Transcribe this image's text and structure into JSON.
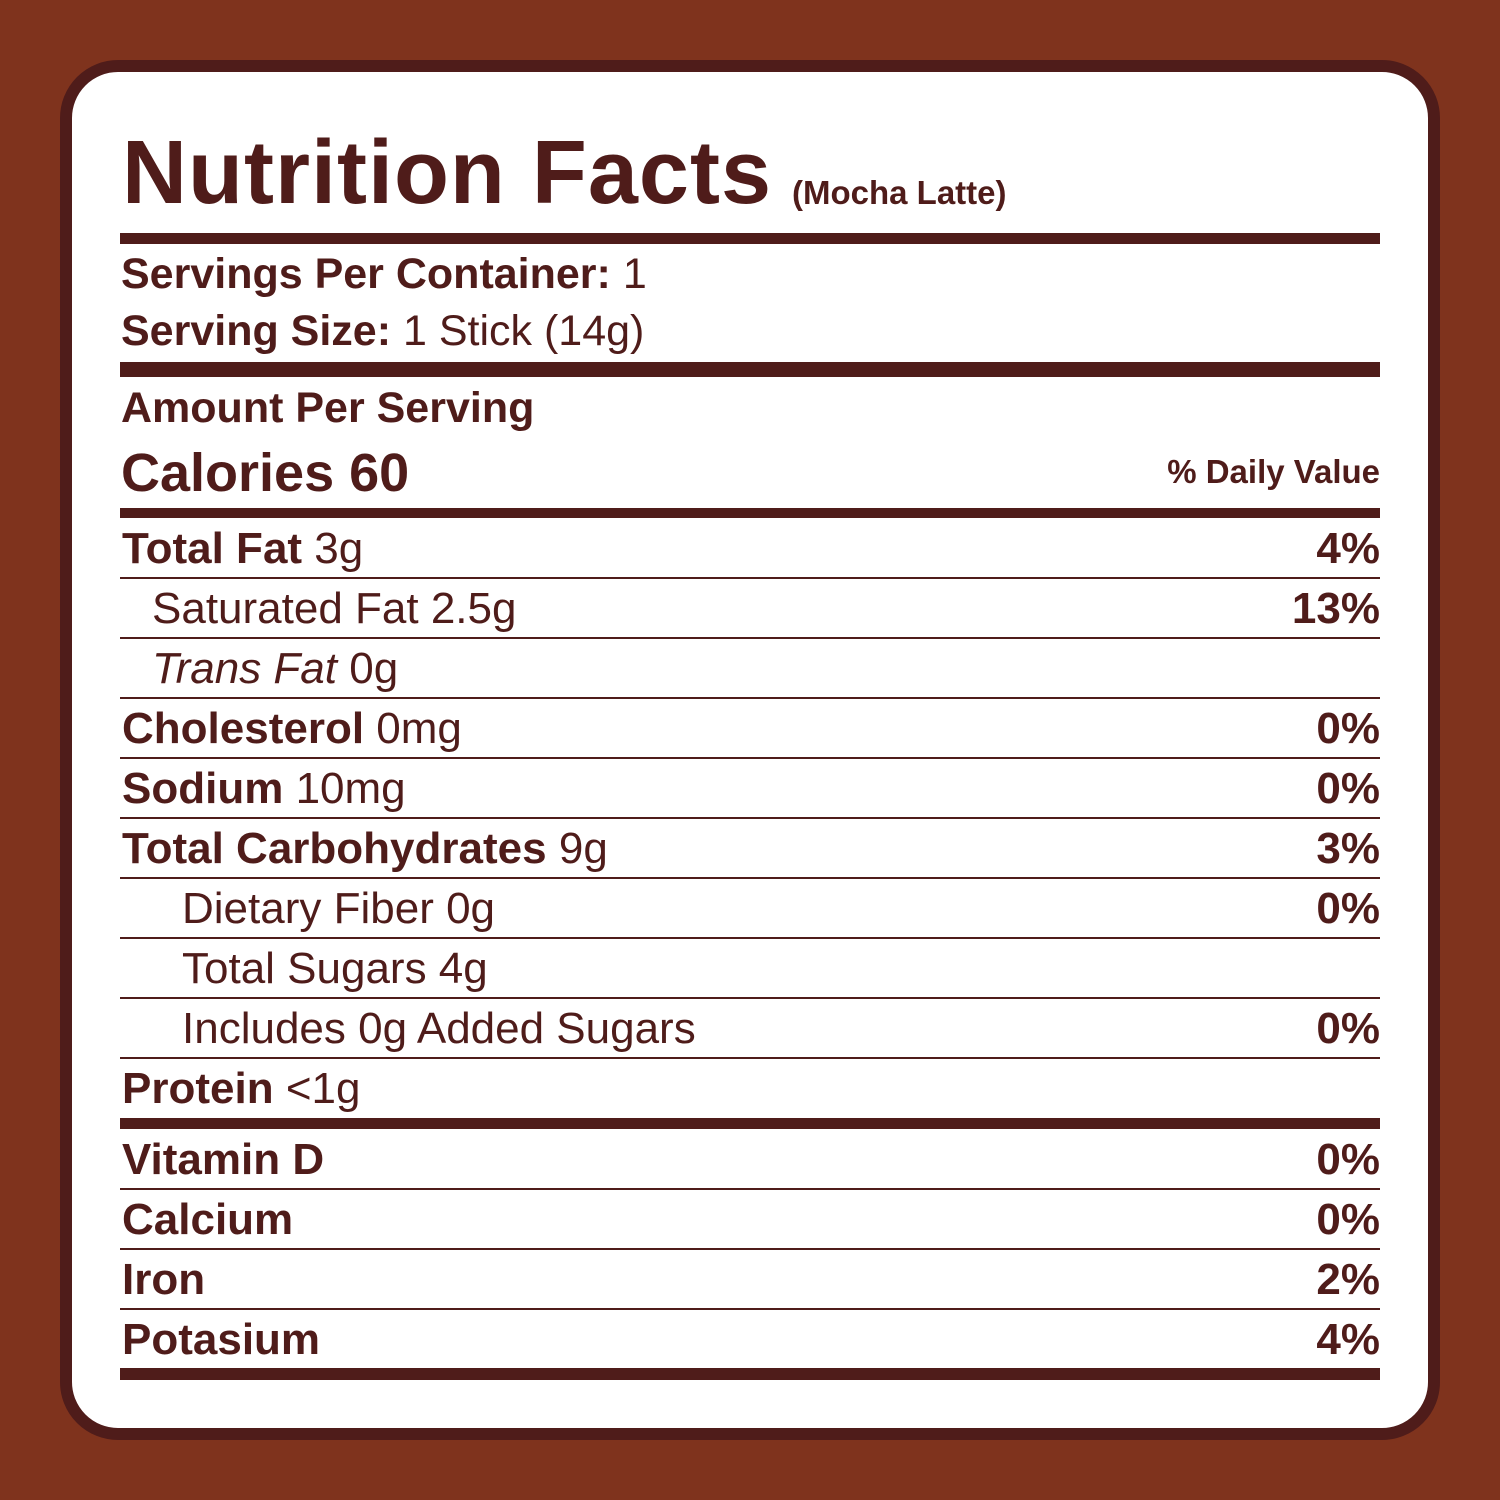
{
  "colors": {
    "background": "#7f331d",
    "ink": "#4f1c1a",
    "card": "#ffffff"
  },
  "header": {
    "title": "Nutrition Facts",
    "subtitle": "(Mocha Latte)"
  },
  "servings": {
    "per_container_label": "Servings Per Container:",
    "per_container_value": "1",
    "size_label": "Serving Size:",
    "size_value": "1 Stick (14g)"
  },
  "amount_per_serving": "Amount Per Serving",
  "calories": {
    "label": "Calories",
    "value": "60"
  },
  "daily_value_header": "% Daily Value",
  "nutrients": [
    {
      "label": "Total Fat",
      "amount": "3g",
      "dv": "4%",
      "indent": 0
    },
    {
      "label": "",
      "amount": "Saturated Fat 2.5g",
      "dv": "13%",
      "indent": 1
    },
    {
      "label": "",
      "italic": "Trans Fat",
      "amount": "0g",
      "dv": "",
      "indent": 1
    },
    {
      "label": "Cholesterol",
      "amount": "0mg",
      "dv": "0%",
      "indent": 0
    },
    {
      "label": "Sodium",
      "amount": "10mg",
      "dv": "0%",
      "indent": 0
    },
    {
      "label": "Total Carbohydrates",
      "amount": "9g",
      "dv": "3%",
      "indent": 0
    },
    {
      "label": "",
      "amount": "Dietary Fiber 0g",
      "dv": "0%",
      "indent": 2
    },
    {
      "label": "",
      "amount": "Total Sugars 4g",
      "dv": "",
      "indent": 2
    },
    {
      "label": "",
      "amount": "Includes 0g Added Sugars",
      "dv": "0%",
      "indent": 2
    },
    {
      "label": "Protein",
      "amount": "<1g",
      "dv": "",
      "indent": 0
    }
  ],
  "vitamins": [
    {
      "label": "Vitamin D",
      "dv": "0%"
    },
    {
      "label": "Calcium",
      "dv": "0%"
    },
    {
      "label": "Iron",
      "dv": "2%"
    },
    {
      "label": "Potasium",
      "dv": "4%"
    }
  ]
}
